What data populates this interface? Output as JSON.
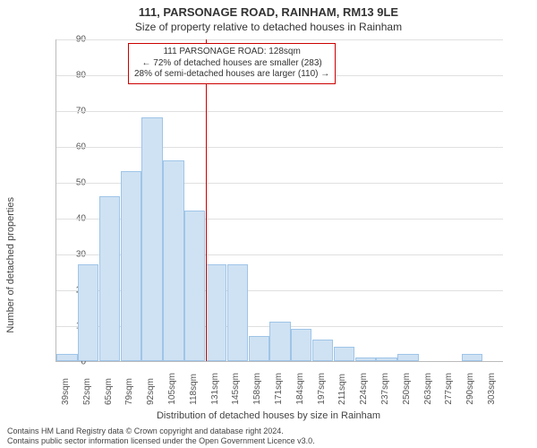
{
  "title": "111, PARSONAGE ROAD, RAINHAM, RM13 9LE",
  "subtitle": "Size of property relative to detached houses in Rainham",
  "x_axis_title": "Distribution of detached houses by size in Rainham",
  "y_axis_title": "Number of detached properties",
  "footer": {
    "line1": "Contains HM Land Registry data © Crown copyright and database right 2024.",
    "line2": "Contains public sector information licensed under the Open Government Licence v3.0."
  },
  "chart": {
    "type": "histogram",
    "ylim": [
      0,
      90
    ],
    "ytick_step": 10,
    "background_color": "#ffffff",
    "grid_color": "#e0e0e0",
    "bar_fill": "#cfe2f3",
    "bar_border": "#9fc5e8",
    "ref_color": "#cc0000",
    "title_fontsize": 13,
    "label_fontsize": 11,
    "tick_fontsize": 10,
    "x_categories": [
      "39sqm",
      "52sqm",
      "65sqm",
      "79sqm",
      "92sqm",
      "105sqm",
      "118sqm",
      "131sqm",
      "145sqm",
      "158sqm",
      "171sqm",
      "184sqm",
      "197sqm",
      "211sqm",
      "224sqm",
      "237sqm",
      "250sqm",
      "263sqm",
      "277sqm",
      "290sqm",
      "303sqm"
    ],
    "values": [
      2,
      27,
      46,
      53,
      68,
      56,
      42,
      27,
      27,
      7,
      11,
      9,
      6,
      4,
      1,
      1,
      2,
      0,
      0,
      2,
      0
    ],
    "ref_category_index": 7,
    "annotation": {
      "lines": [
        "111 PARSONAGE ROAD: 128sqm",
        "← 72% of detached houses are smaller (283)",
        "28% of semi-detached houses are larger (110) →"
      ]
    }
  }
}
